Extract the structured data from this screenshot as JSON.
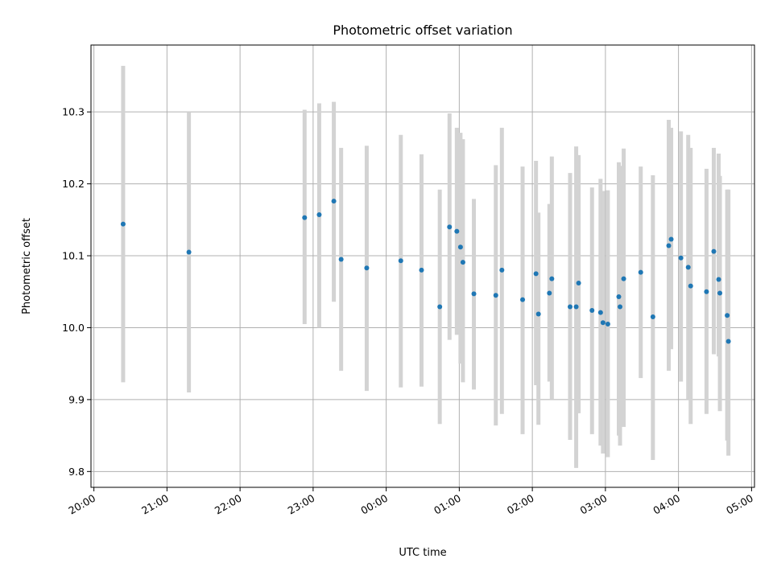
{
  "chart_data": {
    "type": "scatter",
    "title": "Photometric offset variation",
    "xlabel": "UTC time",
    "ylabel": "Photometric offset",
    "grid": true,
    "legend": "none",
    "colors": {
      "point": "#1f77b4",
      "errorbar": "#d3d3d3",
      "grid": "#b0b0b0"
    },
    "x_ticks": [
      "20:00",
      "21:00",
      "22:00",
      "23:00",
      "00:00",
      "01:00",
      "02:00",
      "03:00",
      "04:00",
      "05:00"
    ],
    "y_ticks": [
      "9.8",
      "9.9",
      "10.0",
      "10.1",
      "10.2",
      "10.3"
    ],
    "ylim": [
      9.778,
      10.393
    ],
    "series": [
      {
        "x": [
          "20:24",
          "21:18",
          "22:53",
          "23:05",
          "23:17",
          "23:23",
          "23:44",
          "00:12",
          "00:29",
          "00:44",
          "00:52",
          "00:58",
          "01:01",
          "01:03",
          "01:12",
          "01:30",
          "01:35",
          "01:52",
          "02:03",
          "02:05",
          "02:14",
          "02:16",
          "02:31",
          "02:36",
          "02:38",
          "02:49",
          "02:56",
          "02:58",
          "03:02",
          "03:11",
          "03:12",
          "03:15",
          "03:29",
          "03:39",
          "03:52",
          "03:54",
          "04:02",
          "04:08",
          "04:10",
          "04:23",
          "04:29",
          "04:33",
          "04:34",
          "04:40",
          "04:41"
        ],
        "y": [
          10.144,
          10.105,
          10.153,
          10.157,
          10.176,
          10.095,
          10.083,
          10.093,
          10.08,
          10.029,
          10.14,
          10.134,
          10.112,
          10.091,
          10.047,
          10.045,
          10.08,
          10.039,
          10.075,
          10.019,
          10.048,
          10.068,
          10.029,
          10.029,
          10.062,
          10.024,
          10.021,
          10.007,
          10.005,
          10.043,
          10.029,
          10.068,
          10.077,
          10.015,
          10.114,
          10.123,
          10.097,
          10.084,
          10.058,
          10.05,
          10.106,
          10.067,
          10.048,
          10.017,
          9.981
        ],
        "yerr_low": [
          9.924,
          9.91,
          10.005,
          10.0,
          10.036,
          9.94,
          9.912,
          9.917,
          9.918,
          9.866,
          9.983,
          9.99,
          9.95,
          9.924,
          9.914,
          9.864,
          9.88,
          9.852,
          9.92,
          9.865,
          9.925,
          9.9,
          9.844,
          9.805,
          9.881,
          9.852,
          9.836,
          9.825,
          9.82,
          9.85,
          9.836,
          9.862,
          9.93,
          9.816,
          9.94,
          9.97,
          9.925,
          9.9,
          9.866,
          9.88,
          9.963,
          9.96,
          9.884,
          9.843,
          9.822
        ],
        "yerr_high": [
          10.364,
          10.3,
          10.303,
          10.312,
          10.314,
          10.25,
          10.253,
          10.268,
          10.241,
          10.192,
          10.298,
          10.278,
          10.271,
          10.262,
          10.179,
          10.226,
          10.278,
          10.224,
          10.232,
          10.16,
          10.172,
          10.238,
          10.215,
          10.252,
          10.24,
          10.195,
          10.207,
          10.19,
          10.191,
          10.23,
          10.225,
          10.249,
          10.224,
          10.212,
          10.289,
          10.278,
          10.273,
          10.268,
          10.25,
          10.221,
          10.25,
          10.242,
          10.211,
          10.192,
          10.192
        ]
      }
    ]
  }
}
